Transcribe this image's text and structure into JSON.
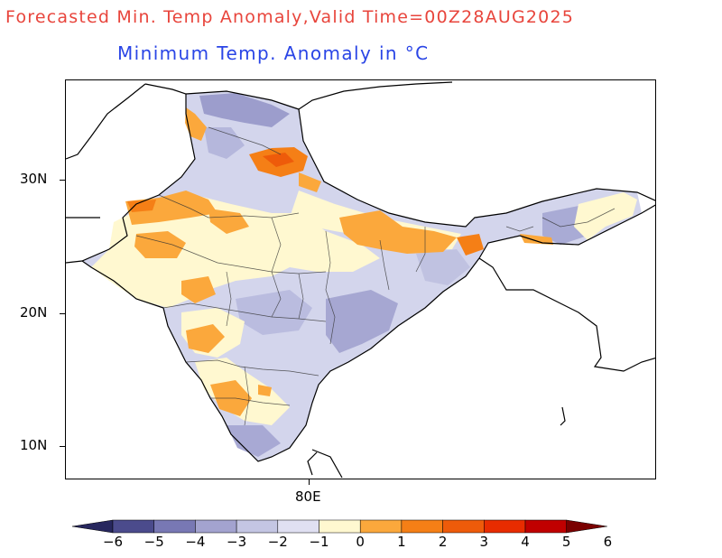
{
  "figure": {
    "title": "Forecasted Min. Temp Anomaly,Valid Time=00Z28AUG2025",
    "subtitle": "Minimum Temp. Anomaly in °C"
  },
  "axes": {
    "lat_labels": [
      "30N",
      "20N",
      "10N"
    ],
    "lon_labels": [
      "80E"
    ]
  },
  "colorbar": {
    "labels": [
      "−6",
      "−5",
      "−4",
      "−3",
      "−2",
      "−1",
      "0",
      "1",
      "2",
      "3",
      "4",
      "5",
      "6"
    ],
    "colors": [
      "#27275e",
      "#4b4b8c",
      "#7878b4",
      "#a3a3cf",
      "#c4c6e3",
      "#e0e0f2",
      "#fff8d0",
      "#fba83c",
      "#f57f16",
      "#ee5b0a",
      "#e82c00",
      "#c00000",
      "#7a0000"
    ]
  }
}
